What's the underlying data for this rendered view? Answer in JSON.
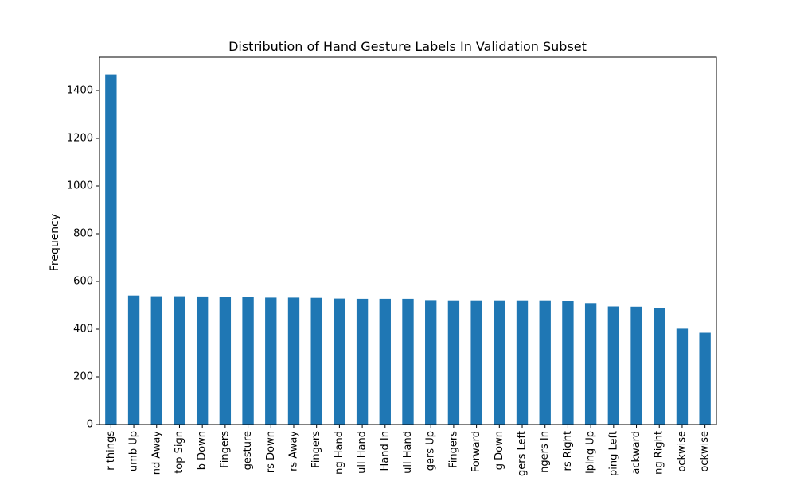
{
  "chart_data": {
    "type": "bar",
    "title": "Distribution of Hand Gesture Labels In Validation Subset",
    "xlabel": "",
    "ylabel": "Frequency",
    "ylim": [
      0,
      1540
    ],
    "yticks": [
      0,
      200,
      400,
      600,
      800,
      1000,
      1200,
      1400
    ],
    "grid": false,
    "bar_color": "#1f77b4",
    "categories": [
      "r things",
      "umb Up",
      "nd Away",
      "top Sign",
      "b Down",
      "Fingers",
      "gesture",
      "rs Down",
      "rs Away",
      "Fingers",
      "ng Hand",
      "ull Hand",
      "Hand In",
      "ull Hand",
      "gers Up",
      "Fingers",
      "Forward",
      "g Down",
      "gers Left",
      "ngers In",
      "rs Right",
      "iping Up",
      "ping Left",
      "ackward",
      "ng Right",
      "ockwise",
      "ockwise"
    ],
    "values": [
      1468,
      541,
      538,
      538,
      537,
      535,
      534,
      532,
      532,
      531,
      528,
      527,
      527,
      527,
      522,
      521,
      521,
      521,
      521,
      521,
      519,
      509,
      495,
      494,
      489,
      402,
      385
    ]
  }
}
